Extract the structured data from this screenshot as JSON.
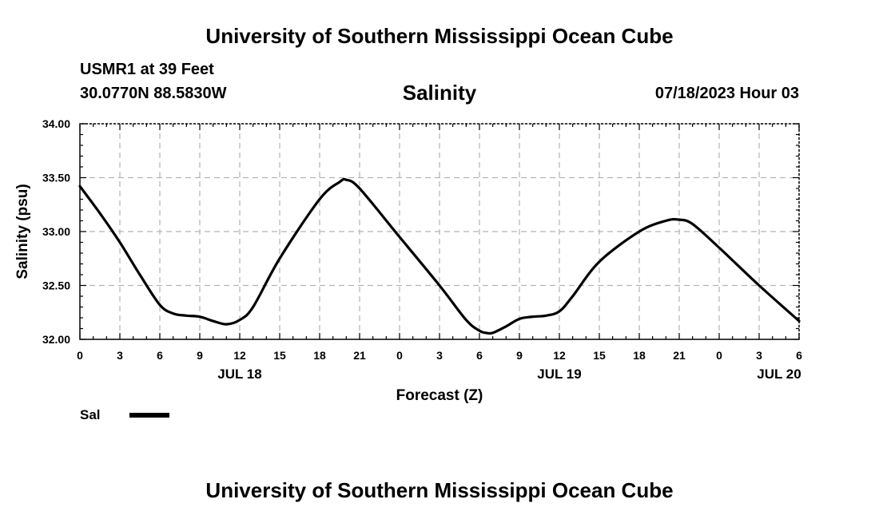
{
  "page": {
    "top_title": "University of Southern Mississippi Ocean Cube",
    "bottom_title": "University of Southern Mississippi Ocean Cube",
    "station": "USMR1 at 39 Feet",
    "coordinates": "30.0770N  88.5830W",
    "datetime": "07/18/2023 Hour 03"
  },
  "chart_data": {
    "type": "line",
    "title": "Salinity",
    "xlabel": "Forecast (Z)",
    "ylabel": "Salinity (psu)",
    "ylim": [
      32.0,
      34.0
    ],
    "xlim": [
      0,
      54
    ],
    "x_units": "hours since JUL 18 00Z",
    "y_ticks": [
      "34.00",
      "33.50",
      "33.00",
      "32.50",
      "32.00"
    ],
    "y_tick_values": [
      34.0,
      33.5,
      33.0,
      32.5,
      32.0
    ],
    "x_tick_hours": [
      0,
      3,
      6,
      9,
      12,
      15,
      18,
      21,
      24,
      27,
      30,
      33,
      36,
      39,
      42,
      45,
      48,
      51,
      54
    ],
    "x_tick_labels": [
      "0",
      "3",
      "6",
      "9",
      "12",
      "15",
      "18",
      "21",
      "0",
      "3",
      "6",
      "9",
      "12",
      "15",
      "18",
      "21",
      "0",
      "3",
      "6"
    ],
    "day_labels": [
      {
        "hour": 12,
        "label": "JUL 18"
      },
      {
        "hour": 36,
        "label": "JUL 19"
      },
      {
        "hour": 52.5,
        "label": "JUL 20"
      }
    ],
    "grid": true,
    "legend": {
      "label": "Sal",
      "placement": "bottom-left"
    },
    "series": [
      {
        "name": "Sal",
        "color": "#000000",
        "x": [
          0,
          1.5,
          3,
          4.5,
          6,
          7,
          8,
          9,
          10,
          11,
          12,
          13,
          15,
          18,
          19.5,
          20,
          21,
          24,
          27,
          29,
          30,
          30.5,
          31,
          32,
          33,
          34,
          35,
          36,
          37,
          39,
          42,
          44,
          45,
          46,
          48,
          51,
          54
        ],
        "values": [
          33.42,
          33.17,
          32.9,
          32.6,
          32.32,
          32.24,
          32.22,
          32.21,
          32.17,
          32.14,
          32.18,
          32.3,
          32.75,
          33.3,
          33.46,
          33.48,
          33.4,
          32.95,
          32.5,
          32.18,
          32.08,
          32.06,
          32.06,
          32.12,
          32.19,
          32.21,
          32.22,
          32.26,
          32.4,
          32.72,
          33.0,
          33.1,
          33.11,
          33.07,
          32.85,
          32.5,
          32.17
        ]
      }
    ]
  }
}
